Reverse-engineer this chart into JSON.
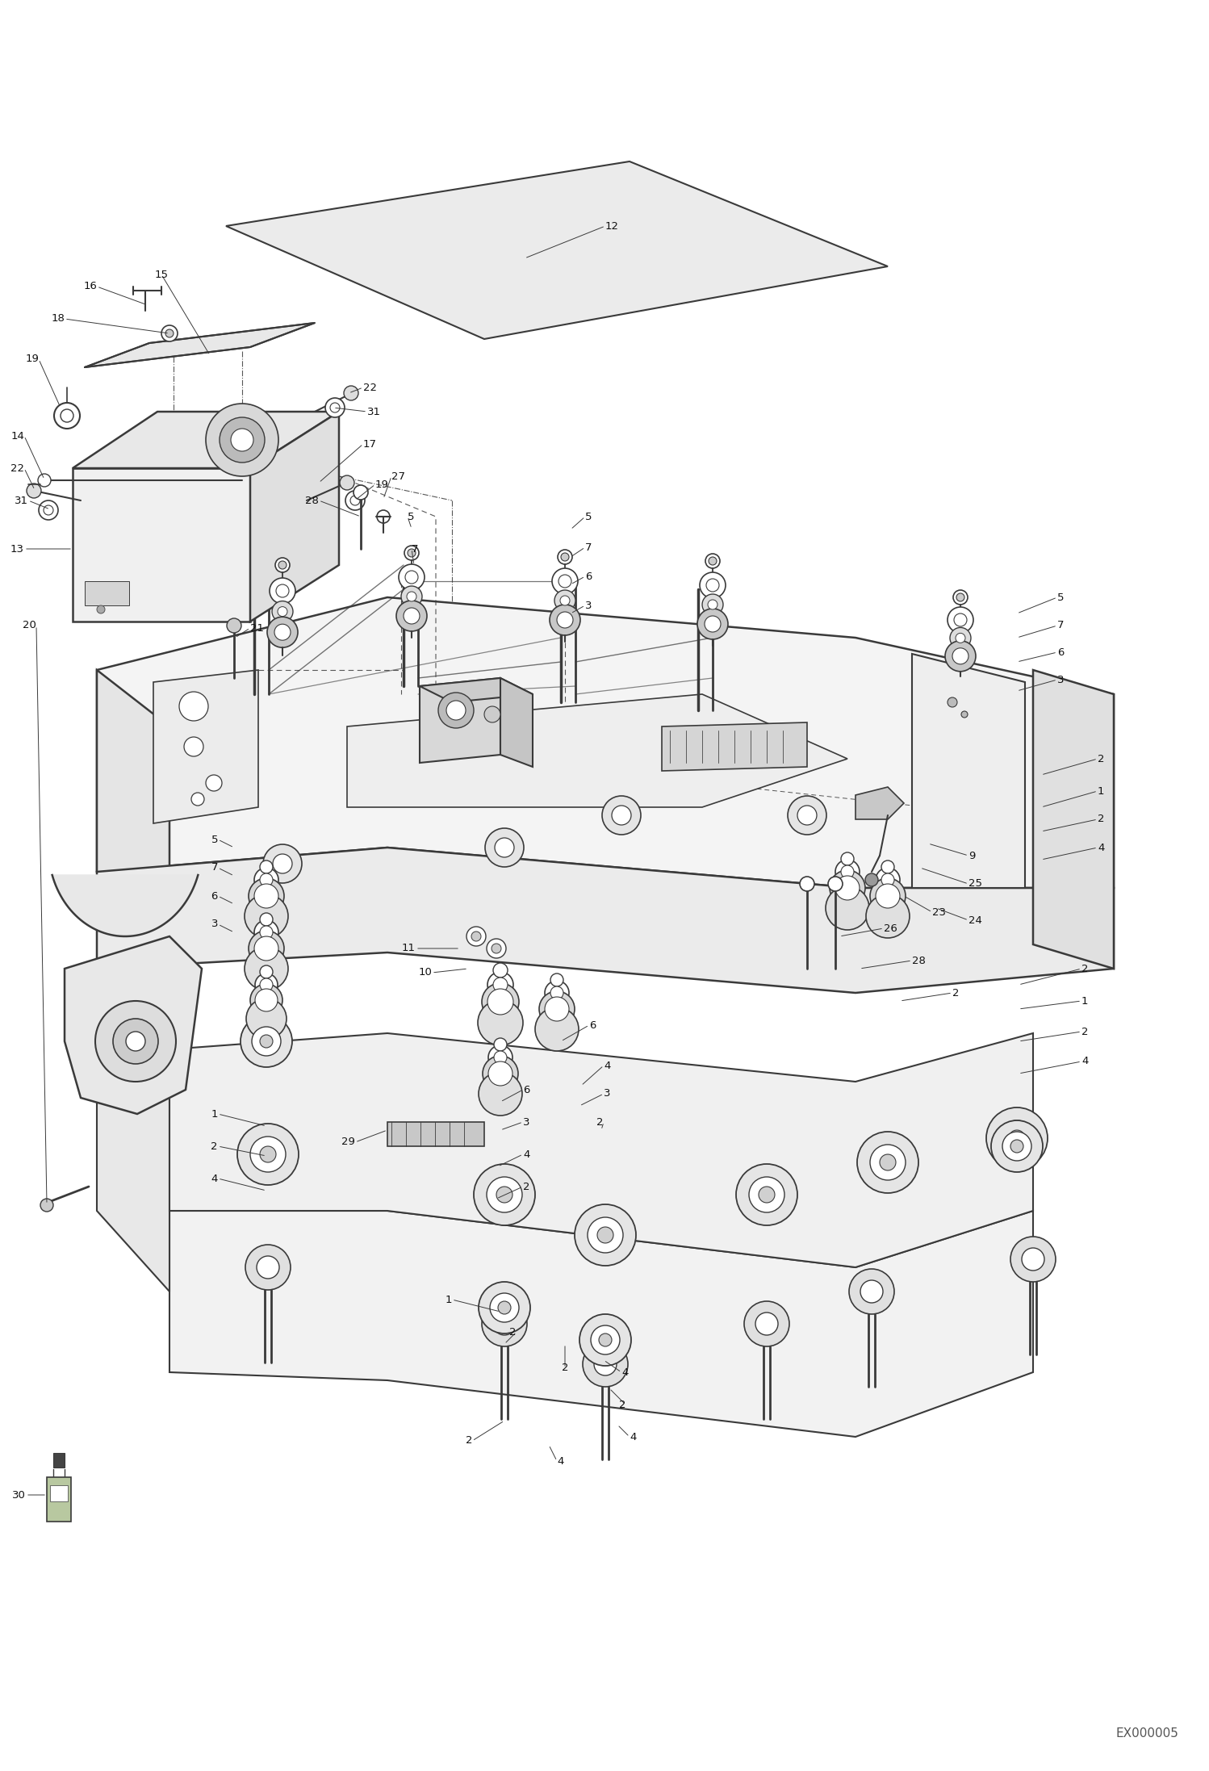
{
  "bg": "#ffffff",
  "lc": "#3a3a3a",
  "lc2": "#555555",
  "fw": 14.98,
  "fh": 21.94,
  "dpi": 100,
  "wm": "EX000005",
  "fs": 9.5
}
